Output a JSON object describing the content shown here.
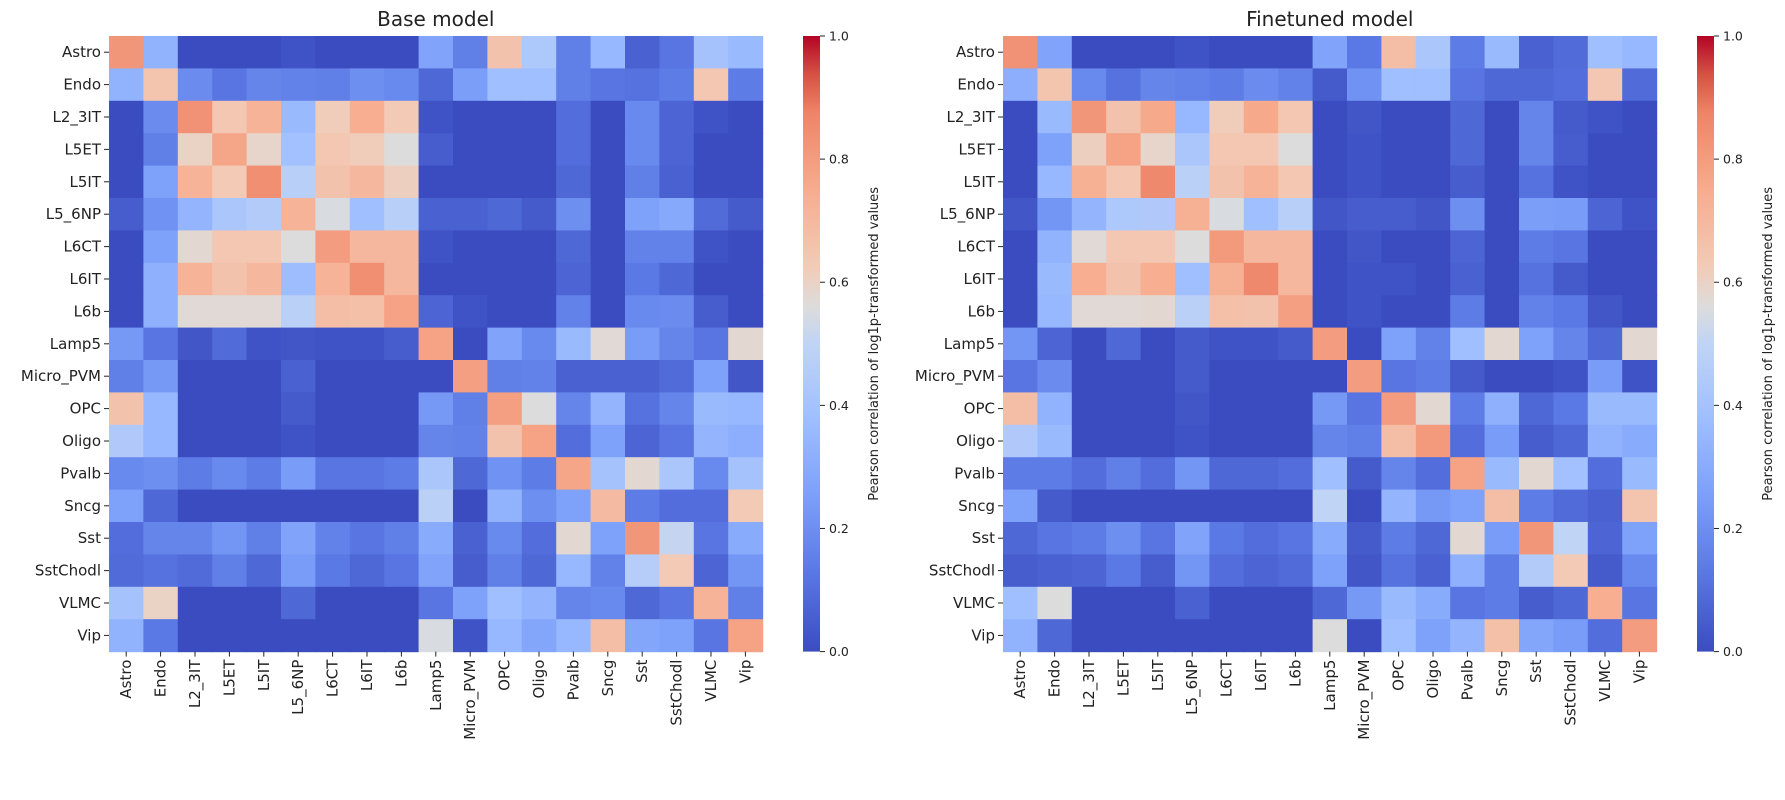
{
  "chart_data": [
    {
      "type": "heatmap",
      "title": "Base model",
      "row_labels": [
        "Astro",
        "Endo",
        "L2_3IT",
        "L5ET",
        "L5IT",
        "L5_6NP",
        "L6CT",
        "L6IT",
        "L6b",
        "Lamp5",
        "Micro_PVM",
        "OPC",
        "Oligo",
        "Pvalb",
        "Sncg",
        "Sst",
        "SstChodl",
        "VLMC",
        "Vip"
      ],
      "col_labels": [
        "Astro",
        "Endo",
        "L2_3IT",
        "L5ET",
        "L5IT",
        "L5_6NP",
        "L6CT",
        "L6IT",
        "L6b",
        "Lamp5",
        "Micro_PVM",
        "OPC",
        "Oligo",
        "Pvalb",
        "Sncg",
        "Sst",
        "SstChodl",
        "VLMC",
        "Vip"
      ],
      "values": [
        [
          0.82,
          0.33,
          0.0,
          0.0,
          0.0,
          0.02,
          0.0,
          0.0,
          0.0,
          0.27,
          0.15,
          0.66,
          0.43,
          0.15,
          0.35,
          0.06,
          0.12,
          0.4,
          0.36
        ],
        [
          0.33,
          0.65,
          0.19,
          0.12,
          0.17,
          0.16,
          0.15,
          0.2,
          0.18,
          0.08,
          0.25,
          0.38,
          0.38,
          0.15,
          0.12,
          0.11,
          0.14,
          0.64,
          0.14
        ],
        [
          0.0,
          0.19,
          0.83,
          0.64,
          0.72,
          0.36,
          0.62,
          0.74,
          0.63,
          0.02,
          0.0,
          0.0,
          0.0,
          0.1,
          0.0,
          0.18,
          0.07,
          0.02,
          0.0
        ],
        [
          0.0,
          0.15,
          0.6,
          0.77,
          0.59,
          0.39,
          0.64,
          0.62,
          0.56,
          0.05,
          0.0,
          0.0,
          0.0,
          0.1,
          0.0,
          0.18,
          0.07,
          0.0,
          0.0
        ],
        [
          0.0,
          0.26,
          0.72,
          0.63,
          0.84,
          0.47,
          0.66,
          0.7,
          0.61,
          0.0,
          0.0,
          0.0,
          0.0,
          0.08,
          0.0,
          0.15,
          0.06,
          0.0,
          0.0
        ],
        [
          0.05,
          0.21,
          0.34,
          0.42,
          0.45,
          0.72,
          0.55,
          0.38,
          0.47,
          0.06,
          0.06,
          0.08,
          0.04,
          0.2,
          0.0,
          0.26,
          0.29,
          0.09,
          0.04
        ],
        [
          0.0,
          0.26,
          0.58,
          0.64,
          0.64,
          0.56,
          0.8,
          0.7,
          0.7,
          0.02,
          0.0,
          0.0,
          0.0,
          0.08,
          0.0,
          0.16,
          0.16,
          0.02,
          0.0
        ],
        [
          0.0,
          0.32,
          0.72,
          0.66,
          0.7,
          0.37,
          0.72,
          0.84,
          0.7,
          0.0,
          0.0,
          0.0,
          0.0,
          0.07,
          0.0,
          0.13,
          0.08,
          0.0,
          0.0
        ],
        [
          0.0,
          0.32,
          0.57,
          0.57,
          0.57,
          0.48,
          0.68,
          0.67,
          0.78,
          0.07,
          0.02,
          0.0,
          0.0,
          0.16,
          0.0,
          0.18,
          0.19,
          0.05,
          0.0
        ],
        [
          0.23,
          0.12,
          0.03,
          0.09,
          0.02,
          0.03,
          0.02,
          0.02,
          0.05,
          0.78,
          0.0,
          0.27,
          0.18,
          0.36,
          0.57,
          0.24,
          0.17,
          0.12,
          0.58
        ],
        [
          0.15,
          0.23,
          0.0,
          0.0,
          0.0,
          0.06,
          0.0,
          0.0,
          0.0,
          0.0,
          0.79,
          0.15,
          0.16,
          0.06,
          0.06,
          0.06,
          0.09,
          0.26,
          0.03
        ],
        [
          0.66,
          0.35,
          0.0,
          0.0,
          0.0,
          0.04,
          0.0,
          0.0,
          0.0,
          0.23,
          0.15,
          0.79,
          0.56,
          0.17,
          0.34,
          0.11,
          0.17,
          0.36,
          0.35
        ],
        [
          0.44,
          0.35,
          0.0,
          0.0,
          0.0,
          0.02,
          0.0,
          0.0,
          0.0,
          0.17,
          0.16,
          0.66,
          0.78,
          0.1,
          0.26,
          0.07,
          0.12,
          0.34,
          0.31
        ],
        [
          0.18,
          0.2,
          0.14,
          0.18,
          0.14,
          0.24,
          0.12,
          0.12,
          0.14,
          0.42,
          0.08,
          0.21,
          0.14,
          0.77,
          0.4,
          0.58,
          0.42,
          0.18,
          0.4
        ],
        [
          0.26,
          0.08,
          0.0,
          0.0,
          0.0,
          0.0,
          0.0,
          0.0,
          0.0,
          0.48,
          0.0,
          0.33,
          0.2,
          0.26,
          0.69,
          0.14,
          0.1,
          0.1,
          0.63
        ],
        [
          0.1,
          0.17,
          0.17,
          0.22,
          0.15,
          0.27,
          0.16,
          0.12,
          0.15,
          0.3,
          0.06,
          0.18,
          0.1,
          0.58,
          0.26,
          0.82,
          0.51,
          0.12,
          0.3
        ],
        [
          0.09,
          0.11,
          0.09,
          0.15,
          0.08,
          0.24,
          0.13,
          0.08,
          0.12,
          0.27,
          0.05,
          0.15,
          0.08,
          0.35,
          0.16,
          0.46,
          0.63,
          0.07,
          0.22
        ],
        [
          0.4,
          0.6,
          0.0,
          0.0,
          0.0,
          0.08,
          0.0,
          0.0,
          0.0,
          0.12,
          0.26,
          0.38,
          0.34,
          0.17,
          0.18,
          0.08,
          0.12,
          0.72,
          0.15
        ],
        [
          0.33,
          0.13,
          0.0,
          0.0,
          0.0,
          0.0,
          0.0,
          0.0,
          0.0,
          0.55,
          0.02,
          0.35,
          0.28,
          0.35,
          0.68,
          0.28,
          0.26,
          0.12,
          0.78
        ]
      ],
      "vmin": 0.0,
      "vmax": 1.0,
      "colormap": "coolwarm",
      "colorbar_label": "Pearson correlation of log1p-transformed values",
      "colorbar_ticks": [
        "0.0",
        "0.2",
        "0.4",
        "0.6",
        "0.8",
        "1.0"
      ]
    },
    {
      "type": "heatmap",
      "title": "Finetuned model",
      "row_labels": [
        "Astro",
        "Endo",
        "L2_3IT",
        "L5ET",
        "L5IT",
        "L5_6NP",
        "L6CT",
        "L6IT",
        "L6b",
        "Lamp5",
        "Micro_PVM",
        "OPC",
        "Oligo",
        "Pvalb",
        "Sncg",
        "Sst",
        "SstChodl",
        "VLMC",
        "Vip"
      ],
      "col_labels": [
        "Astro",
        "Endo",
        "L2_3IT",
        "L5ET",
        "L5IT",
        "L5_6NP",
        "L6CT",
        "L6IT",
        "L6b",
        "Lamp5",
        "Micro_PVM",
        "OPC",
        "Oligo",
        "Pvalb",
        "Sncg",
        "Sst",
        "SstChodl",
        "VLMC",
        "Vip"
      ],
      "values": [
        [
          0.83,
          0.27,
          0.0,
          0.0,
          0.0,
          0.02,
          0.0,
          0.0,
          0.0,
          0.27,
          0.13,
          0.68,
          0.42,
          0.14,
          0.36,
          0.06,
          0.09,
          0.38,
          0.35
        ],
        [
          0.31,
          0.65,
          0.18,
          0.11,
          0.17,
          0.16,
          0.14,
          0.19,
          0.16,
          0.04,
          0.21,
          0.38,
          0.38,
          0.12,
          0.08,
          0.08,
          0.1,
          0.64,
          0.09
        ],
        [
          0.0,
          0.36,
          0.82,
          0.66,
          0.76,
          0.35,
          0.62,
          0.76,
          0.64,
          0.0,
          0.03,
          0.0,
          0.0,
          0.08,
          0.0,
          0.17,
          0.04,
          0.02,
          0.0
        ],
        [
          0.0,
          0.26,
          0.61,
          0.78,
          0.59,
          0.42,
          0.64,
          0.64,
          0.56,
          0.0,
          0.02,
          0.0,
          0.0,
          0.08,
          0.0,
          0.17,
          0.05,
          0.0,
          0.0
        ],
        [
          0.0,
          0.35,
          0.73,
          0.64,
          0.86,
          0.48,
          0.66,
          0.72,
          0.64,
          0.0,
          0.02,
          0.0,
          0.0,
          0.05,
          0.0,
          0.11,
          0.02,
          0.0,
          0.0
        ],
        [
          0.03,
          0.22,
          0.34,
          0.43,
          0.44,
          0.73,
          0.55,
          0.38,
          0.47,
          0.03,
          0.05,
          0.05,
          0.03,
          0.2,
          0.0,
          0.25,
          0.24,
          0.07,
          0.02
        ],
        [
          0.0,
          0.33,
          0.57,
          0.64,
          0.64,
          0.56,
          0.81,
          0.7,
          0.7,
          0.0,
          0.03,
          0.0,
          0.0,
          0.07,
          0.0,
          0.14,
          0.12,
          0.0,
          0.0
        ],
        [
          0.0,
          0.36,
          0.74,
          0.66,
          0.74,
          0.38,
          0.73,
          0.86,
          0.7,
          0.0,
          0.02,
          0.02,
          0.0,
          0.06,
          0.0,
          0.11,
          0.04,
          0.0,
          0.0
        ],
        [
          0.0,
          0.35,
          0.57,
          0.57,
          0.58,
          0.48,
          0.67,
          0.66,
          0.79,
          0.0,
          0.02,
          0.0,
          0.0,
          0.14,
          0.0,
          0.16,
          0.13,
          0.03,
          0.0
        ],
        [
          0.22,
          0.07,
          0.0,
          0.08,
          0.0,
          0.04,
          0.02,
          0.02,
          0.04,
          0.8,
          0.0,
          0.26,
          0.16,
          0.38,
          0.58,
          0.26,
          0.17,
          0.08,
          0.58
        ],
        [
          0.12,
          0.19,
          0.0,
          0.0,
          0.0,
          0.04,
          0.0,
          0.0,
          0.0,
          0.0,
          0.8,
          0.12,
          0.14,
          0.04,
          0.0,
          0.0,
          0.02,
          0.24,
          0.02
        ],
        [
          0.68,
          0.33,
          0.0,
          0.0,
          0.0,
          0.03,
          0.0,
          0.0,
          0.0,
          0.23,
          0.12,
          0.8,
          0.58,
          0.14,
          0.32,
          0.08,
          0.13,
          0.36,
          0.36
        ],
        [
          0.44,
          0.36,
          0.0,
          0.0,
          0.0,
          0.02,
          0.0,
          0.0,
          0.0,
          0.17,
          0.15,
          0.68,
          0.81,
          0.1,
          0.24,
          0.05,
          0.08,
          0.33,
          0.3
        ],
        [
          0.14,
          0.14,
          0.1,
          0.15,
          0.1,
          0.22,
          0.08,
          0.08,
          0.1,
          0.38,
          0.04,
          0.17,
          0.1,
          0.78,
          0.36,
          0.58,
          0.39,
          0.1,
          0.36
        ],
        [
          0.26,
          0.04,
          0.0,
          0.0,
          0.0,
          0.0,
          0.0,
          0.0,
          0.0,
          0.5,
          0.0,
          0.34,
          0.23,
          0.26,
          0.68,
          0.14,
          0.09,
          0.06,
          0.65
        ],
        [
          0.08,
          0.12,
          0.14,
          0.2,
          0.12,
          0.27,
          0.13,
          0.1,
          0.12,
          0.3,
          0.04,
          0.14,
          0.08,
          0.58,
          0.24,
          0.82,
          0.5,
          0.07,
          0.26
        ],
        [
          0.05,
          0.06,
          0.07,
          0.13,
          0.05,
          0.22,
          0.1,
          0.07,
          0.09,
          0.26,
          0.03,
          0.11,
          0.06,
          0.32,
          0.14,
          0.45,
          0.63,
          0.04,
          0.18
        ],
        [
          0.38,
          0.56,
          0.0,
          0.0,
          0.0,
          0.06,
          0.0,
          0.0,
          0.0,
          0.08,
          0.23,
          0.36,
          0.3,
          0.12,
          0.14,
          0.05,
          0.08,
          0.74,
          0.12
        ],
        [
          0.33,
          0.08,
          0.0,
          0.0,
          0.0,
          0.0,
          0.0,
          0.0,
          0.0,
          0.56,
          0.0,
          0.38,
          0.26,
          0.34,
          0.67,
          0.28,
          0.24,
          0.1,
          0.8
        ]
      ],
      "vmin": 0.0,
      "vmax": 1.0,
      "colormap": "coolwarm",
      "colorbar_label": "Pearson correlation of log1p-transformed values",
      "colorbar_ticks": [
        "0.0",
        "0.2",
        "0.4",
        "0.6",
        "0.8",
        "1.0"
      ]
    }
  ]
}
